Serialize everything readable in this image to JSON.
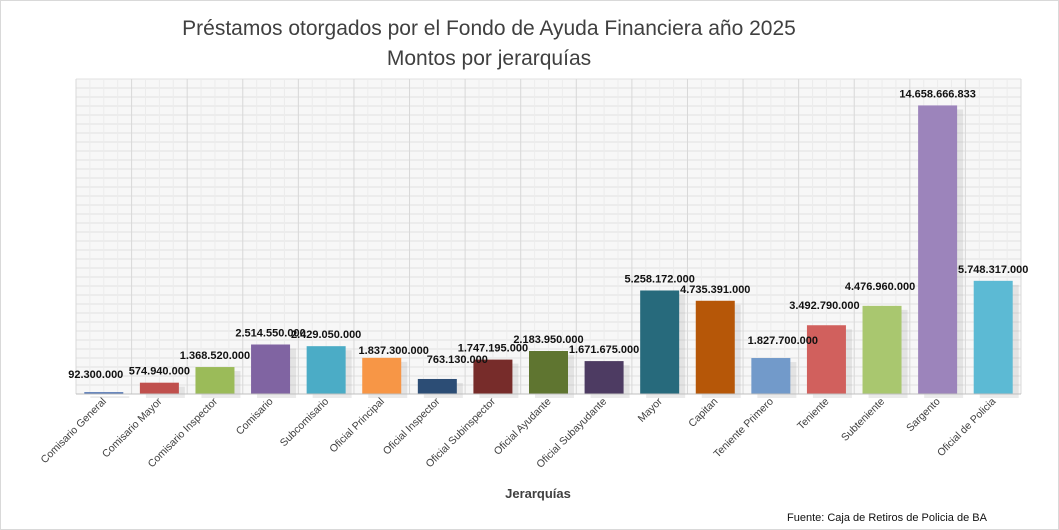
{
  "chart_data": {
    "type": "bar",
    "title": "Préstamos otorgados por el Fondo de Ayuda Financiera año 2025",
    "subtitle": "Montos por jerarquías",
    "xlabel": "Jerarquías",
    "ylabel": "",
    "ylim": [
      0,
      16000000000
    ],
    "grid": true,
    "categories": [
      "Comisario General",
      "Comisario Mayor",
      "Comisario Inspector",
      "Comisario",
      "Subcomisario",
      "Oficial Principal",
      "Oficial Inspector",
      "Oficial Subinspector",
      "Oficial Ayudante",
      "Oficial Subayudante",
      "Mayor",
      "Capitan",
      "Teniente Primero",
      "Teniente",
      "Subteniente",
      "Sargento",
      "Oficial de Policia"
    ],
    "values": [
      92300000,
      574940000,
      1368520000,
      2514550000,
      2429050000,
      1837300000,
      763130000,
      1747195000,
      2183950000,
      1671675000,
      5258172000,
      4735391000,
      1827700000,
      3492790000,
      4476960000,
      14658666833,
      5748317000
    ],
    "data_labels": [
      "92.300.000",
      "574.940.000",
      "1.368.520.000",
      "2.514.550.000",
      "2.429.050.000",
      "1.837.300.000",
      "763.130.000",
      "1.747.195.000",
      "2.183.950.000",
      "1.671.675.000",
      "5.258.172.000",
      "4.735.391.000",
      "1.827.700.000",
      "3.492.790.000",
      "4.476.960.000",
      "14.658.666.833",
      "5.748.317.000"
    ],
    "colors": [
      "#4a6fb0",
      "#c0504d",
      "#9bbb59",
      "#8064a2",
      "#4bacc6",
      "#f79646",
      "#2c4d75",
      "#772c2a",
      "#5f7530",
      "#4d3b62",
      "#276a7c",
      "#b65708",
      "#729aca",
      "#d1605d",
      "#a9c76f",
      "#9c84bb",
      "#5cbad4"
    ]
  },
  "source": "Fuente: Caja de Retiros de Policia de BA"
}
